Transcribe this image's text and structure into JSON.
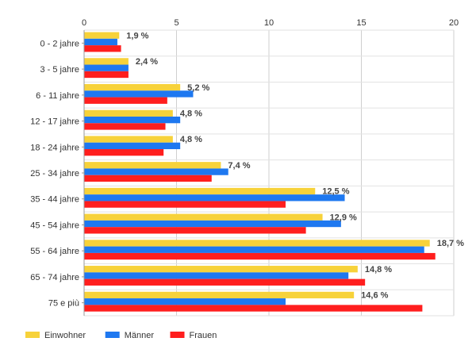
{
  "chart_data": {
    "type": "bar",
    "orientation": "horizontal",
    "categories": [
      "0 - 2 jahre",
      "3 - 5 jahre",
      "6 - 11 jahre",
      "12 - 17 jahre",
      "18 - 24 jahre",
      "25 - 34 jahre",
      "35 - 44 jahre",
      "45 - 54 jahre",
      "55 - 64 jahre",
      "65 - 74 jahre",
      "75 e più"
    ],
    "series": [
      {
        "name": "Einwohner",
        "color": "#f7d23a",
        "values": [
          1.9,
          2.4,
          5.2,
          4.8,
          4.8,
          7.4,
          12.5,
          12.9,
          18.7,
          14.8,
          14.6
        ]
      },
      {
        "name": "Männer",
        "color": "#1e78f0",
        "values": [
          1.8,
          2.4,
          5.9,
          5.2,
          5.2,
          7.8,
          14.1,
          13.9,
          18.4,
          14.3,
          10.9
        ]
      },
      {
        "name": "Frauen",
        "color": "#ff1e1e",
        "values": [
          2.0,
          2.4,
          4.5,
          4.4,
          4.3,
          6.9,
          10.9,
          12.0,
          19.0,
          15.2,
          18.3
        ]
      }
    ],
    "data_labels": [
      "1,9 %",
      "2,4 %",
      "5,2 %",
      "4,8 %",
      "4,8 %",
      "7,4 %",
      "12,5 %",
      "12,9 %",
      "18,7 %",
      "14,8 %",
      "14,6 %"
    ],
    "x_ticks": [
      0,
      5,
      10,
      15,
      20
    ],
    "xlim": [
      0,
      20
    ],
    "axis_position": "top",
    "grid": true,
    "legend_position": "bottom-left",
    "title": "",
    "xlabel": "",
    "ylabel": ""
  }
}
